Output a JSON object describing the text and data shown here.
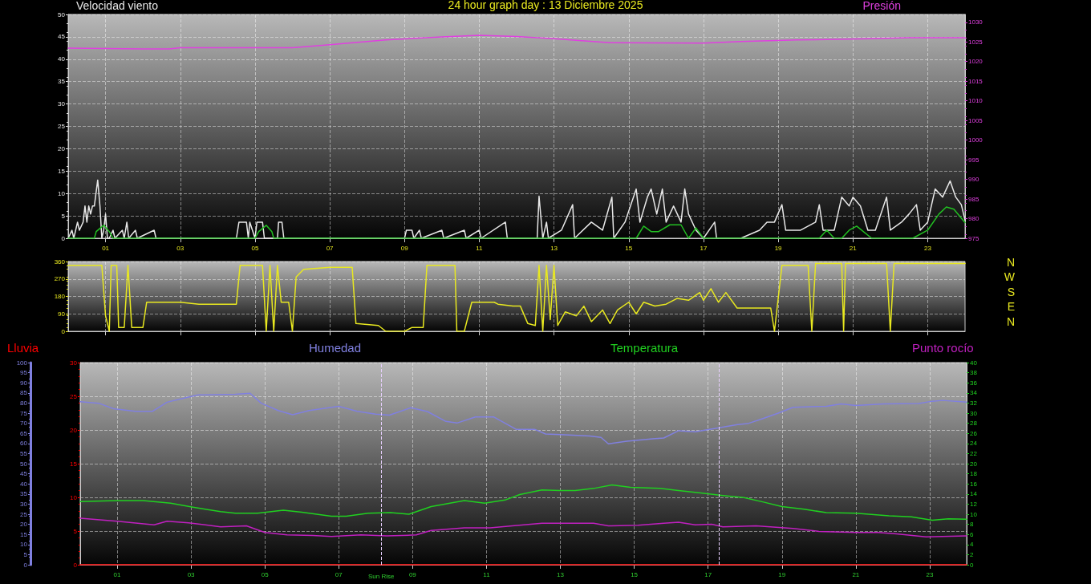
{
  "chart_data": [
    {
      "type": "line",
      "title": "24 hour graph day : 13 Diciembre 2025",
      "ylabel": "Velocidad viento",
      "y2label": "Presión",
      "xlim": [
        0,
        24
      ],
      "xticks": [
        {
          "value": 1,
          "label": "01"
        },
        {
          "value": 3,
          "label": "03"
        },
        {
          "value": 5,
          "label": "05"
        },
        {
          "value": 7,
          "label": "07"
        },
        {
          "value": 9,
          "label": "09"
        },
        {
          "value": 11,
          "label": "11"
        },
        {
          "value": 13,
          "label": "13"
        },
        {
          "value": 15,
          "label": "15"
        },
        {
          "value": 17,
          "label": "17"
        },
        {
          "value": 19,
          "label": "19"
        },
        {
          "value": 21,
          "label": "21"
        },
        {
          "value": 23,
          "label": "23"
        }
      ],
      "ylim": [
        0,
        50
      ],
      "yticks": [
        0,
        5,
        10,
        15,
        20,
        25,
        30,
        35,
        40,
        45,
        50
      ],
      "y2lim": [
        975,
        1032
      ],
      "y2ticks": [
        975,
        980,
        985,
        990,
        995,
        1000,
        1005,
        1010,
        1015,
        1020,
        1025,
        1030
      ],
      "grid": true,
      "legend": false,
      "marker": "none",
      "line_style": "solid",
      "series": [
        {
          "color": "#e8e8e8",
          "x": [
            0,
            0.1,
            0.15,
            0.25,
            0.3,
            0.4,
            0.45,
            0.5,
            0.55,
            0.6,
            0.65,
            0.7,
            0.79,
            0.85,
            0.9,
            0.95,
            1.0,
            1.05,
            1.1,
            1.2,
            1.25,
            1.45,
            1.5,
            1.57,
            1.62,
            1.8,
            1.85,
            2.3,
            2.35,
            4.5,
            4.57,
            4.77,
            4.82,
            4.86,
            5.0,
            5.05,
            5.2,
            5.25,
            5.6,
            5.63,
            5.72,
            5.77,
            9.0,
            9.05,
            9.2,
            9.25,
            9.4,
            9.45,
            10.0,
            10.05,
            10.6,
            10.65,
            11.0,
            11.05,
            11.7,
            11.75,
            12.55,
            12.6,
            12.7,
            12.8,
            12.85,
            13.2,
            13.5,
            13.55,
            14.0,
            14.3,
            14.55,
            14.6,
            14.9,
            15.2,
            15.3,
            15.5,
            15.6,
            15.75,
            15.9,
            16.0,
            16.2,
            16.4,
            16.5,
            16.6,
            16.8,
            17.0,
            17.3,
            17.35,
            18.0,
            18.5,
            18.7,
            18.9,
            19.1,
            19.2,
            19.6,
            20.0,
            20.1,
            20.2,
            20.5,
            20.7,
            20.9,
            21.0,
            21.2,
            21.4,
            21.6,
            21.9,
            22.0,
            22.3,
            22.5,
            22.7,
            22.8,
            23.0,
            23.2,
            23.4,
            23.6,
            23.75,
            23.9,
            24.0
          ],
          "values": [
            0,
            1.8,
            0,
            3.6,
            1.8,
            3.6,
            7.2,
            3.6,
            7.2,
            5.4,
            7.2,
            7.2,
            13,
            7.2,
            0,
            1.8,
            5.4,
            0,
            0,
            1.8,
            0,
            1.8,
            0,
            3.6,
            0,
            1.8,
            0,
            1.8,
            0,
            0,
            3.6,
            3.6,
            0,
            3.6,
            0,
            3.6,
            3.6,
            0,
            0,
            3.6,
            3.6,
            0,
            0,
            1.8,
            1.8,
            0,
            1.8,
            0,
            1.8,
            0,
            1.8,
            0,
            1.8,
            0,
            3.6,
            0,
            0,
            9.4,
            0,
            3.6,
            0,
            1.8,
            7.5,
            0,
            3.6,
            1.8,
            9.2,
            0,
            3.6,
            11,
            3.6,
            9.2,
            11,
            5.4,
            11,
            3.6,
            7.2,
            3.6,
            11,
            5.4,
            1.8,
            0,
            3.6,
            0,
            0,
            1.8,
            3.6,
            3.6,
            7.5,
            1.8,
            1.8,
            3.6,
            7.5,
            1.8,
            1.8,
            9.2,
            7.2,
            9.2,
            7.2,
            1.8,
            1.8,
            9.2,
            1.8,
            3.6,
            5.4,
            7.5,
            1.8,
            3.6,
            11,
            9.2,
            12.8,
            9.2,
            7.5,
            4
          ]
        },
        {
          "color": "#22c022",
          "x": [
            0,
            0.7,
            0.75,
            0.95,
            1.1,
            1.2,
            5.0,
            5.1,
            5.3,
            5.45,
            5.5,
            15.2,
            15.4,
            15.6,
            15.8,
            16.1,
            16.4,
            16.6,
            16.8,
            17.0,
            20.1,
            20.3,
            20.5,
            20.7,
            20.9,
            21.1,
            21.5,
            22.6,
            23.0,
            23.3,
            23.5,
            23.7,
            24.0
          ],
          "values": [
            0,
            0,
            1.5,
            2.9,
            1.5,
            0,
            0,
            1.5,
            2.9,
            1.5,
            0,
            0,
            2.7,
            1.5,
            1.5,
            3,
            3,
            0,
            2.3,
            0,
            0,
            1.8,
            0,
            0,
            1.8,
            2.7,
            0,
            0,
            1.8,
            5.4,
            7,
            6.5,
            3.5
          ]
        },
        {
          "color": "#e040e0",
          "axis": "y2",
          "x": [
            0,
            2,
            2.7,
            3,
            6,
            7,
            8.5,
            10,
            11,
            12,
            13,
            14.5,
            17,
            18,
            19.5,
            21.5,
            22.5,
            24
          ],
          "values": [
            1023.4,
            1023.2,
            1023.2,
            1023.5,
            1023.5,
            1024.3,
            1025.5,
            1026.3,
            1026.7,
            1026.4,
            1025.8,
            1024.8,
            1024.7,
            1025.1,
            1025.5,
            1025.8,
            1026.1,
            1026.1
          ]
        }
      ]
    },
    {
      "type": "line",
      "xlim": [
        0,
        24
      ],
      "xticks": [
        1,
        3,
        5,
        7,
        9,
        11,
        13,
        15,
        17,
        19,
        21,
        23
      ],
      "ylim": [
        0,
        360
      ],
      "yticks": [
        0,
        90,
        180,
        270,
        360
      ],
      "grid": true,
      "legend": false,
      "marker": "none",
      "line_style": "solid",
      "tick_labels": "y",
      "annotations": [
        "N",
        "W",
        "S",
        "E",
        "N"
      ],
      "series": [
        {
          "color": "#e8e820",
          "x": [
            0,
            0.9,
            1.0,
            1.1,
            1.15,
            1.3,
            1.35,
            1.5,
            1.6,
            1.7,
            2.0,
            2.1,
            3.0,
            3.5,
            4.0,
            4.5,
            4.6,
            5.2,
            5.3,
            5.4,
            5.5,
            5.6,
            5.7,
            5.9,
            6.0,
            6.1,
            6.3,
            7.0,
            7.6,
            7.7,
            8.3,
            8.5,
            9.0,
            9.2,
            9.5,
            9.6,
            10.35,
            10.4,
            10.6,
            10.8,
            11.4,
            11.5,
            11.9,
            12.1,
            12.3,
            12.5,
            12.6,
            12.7,
            12.8,
            12.9,
            13.0,
            13.1,
            13.3,
            13.6,
            13.8,
            14.0,
            14.3,
            14.5,
            14.7,
            15.0,
            15.2,
            15.4,
            15.7,
            16.0,
            16.3,
            16.6,
            16.9,
            17.0,
            17.2,
            17.4,
            17.6,
            17.9,
            18.2,
            18.5,
            18.8,
            18.9,
            19.1,
            19.8,
            19.9,
            20.0,
            20.7,
            20.75,
            20.8,
            21.9,
            22.0,
            22.1,
            24
          ],
          "values": [
            340,
            340,
            80,
            0,
            340,
            340,
            20,
            20,
            340,
            20,
            20,
            150,
            150,
            140,
            140,
            140,
            340,
            340,
            0,
            340,
            0,
            340,
            150,
            150,
            0,
            280,
            320,
            330,
            330,
            40,
            30,
            0,
            0,
            20,
            20,
            340,
            340,
            0,
            0,
            150,
            150,
            140,
            130,
            130,
            40,
            30,
            340,
            0,
            340,
            60,
            340,
            30,
            100,
            80,
            130,
            50,
            110,
            40,
            110,
            150,
            90,
            150,
            130,
            140,
            170,
            160,
            200,
            160,
            220,
            150,
            200,
            120,
            120,
            120,
            120,
            0,
            340,
            340,
            0,
            350,
            350,
            0,
            350,
            350,
            0,
            350,
            350
          ]
        }
      ]
    },
    {
      "type": "line",
      "xlim": [
        0,
        24
      ],
      "xticks": [
        {
          "value": 1,
          "label": "01"
        },
        {
          "value": 3,
          "label": "03"
        },
        {
          "value": 5,
          "label": "05"
        },
        {
          "value": 7,
          "label": "07"
        },
        {
          "value": 9,
          "label": "09"
        },
        {
          "value": 11,
          "label": "11"
        },
        {
          "value": 13,
          "label": "13"
        },
        {
          "value": 15,
          "label": "15"
        },
        {
          "value": 17,
          "label": "17"
        },
        {
          "value": 19,
          "label": "19"
        },
        {
          "value": 21,
          "label": "21"
        },
        {
          "value": 23,
          "label": "23"
        }
      ],
      "ylim": [
        0,
        30
      ],
      "yticks": [
        0,
        5,
        10,
        15,
        20,
        25,
        30
      ],
      "y2lim": [
        0,
        40
      ],
      "y2ticks": [
        0,
        2,
        4,
        6,
        8,
        10,
        12,
        14,
        16,
        18,
        20,
        22,
        24,
        26,
        28,
        30,
        32,
        34,
        36,
        38,
        40
      ],
      "y3lim": [
        0,
        100
      ],
      "y3ticks": [
        0,
        5,
        10,
        15,
        20,
        25,
        30,
        35,
        40,
        45,
        50,
        55,
        60,
        65,
        70,
        75,
        80,
        85,
        90,
        95,
        100
      ],
      "grid": true,
      "legend": "top",
      "marker": "none",
      "line_style": "solid",
      "ref_lines": [
        {
          "axis": "x",
          "value": 8.15,
          "label": "Sun Rise"
        },
        {
          "axis": "x",
          "value": 17.3,
          "label": null
        }
      ],
      "series": [
        {
          "name": "Lluvia",
          "color": "#ff0000",
          "x": [
            0,
            24
          ],
          "values": [
            0,
            0
          ]
        },
        {
          "name": "Humedad",
          "color": "#8080e0",
          "axis": "y3",
          "x": [
            0,
            0.5,
            0.9,
            1.5,
            1.96,
            2.35,
            2.93,
            3.2,
            4.2,
            4.6,
            4.9,
            5.36,
            5.75,
            6.2,
            7,
            7.5,
            8,
            8.37,
            8.95,
            9.4,
            9.9,
            10.2,
            10.7,
            11.2,
            11.8,
            12.3,
            12.6,
            13,
            13.8,
            14.1,
            14.3,
            14.8,
            15.5,
            15.8,
            16.2,
            16.65,
            17.2,
            17.8,
            18.07,
            18.5,
            18.9,
            19.3,
            20.2,
            20.6,
            21,
            21.75,
            22.7,
            23.07,
            23.35,
            24
          ],
          "values": [
            80.7,
            79.9,
            77.2,
            75.9,
            75.9,
            80.4,
            82.9,
            84,
            84.3,
            84.8,
            79.9,
            76.3,
            74.2,
            76.3,
            78.4,
            75.9,
            74.5,
            74,
            77.7,
            75.8,
            70.9,
            70.1,
            73.1,
            73.1,
            67,
            67,
            64.7,
            64.4,
            63.7,
            63,
            59.8,
            61.1,
            62.3,
            62.7,
            66.3,
            65.8,
            67.5,
            69.3,
            69.8,
            72.4,
            75,
            77.9,
            78.4,
            79.6,
            78.8,
            79.6,
            79.8,
            80.9,
            81.3,
            80.5
          ]
        },
        {
          "name": "Temperatura",
          "color": "#20d020",
          "axis": "y2",
          "x": [
            0,
            1,
            1.7,
            2.45,
            3.05,
            3.8,
            4.2,
            4.8,
            5.5,
            6,
            6.8,
            7.2,
            7.8,
            8.4,
            8.9,
            9.5,
            10.4,
            10.95,
            11.5,
            11.9,
            12.5,
            13,
            13.4,
            13.9,
            14.4,
            14.9,
            15.7,
            16.2,
            16.8,
            17.4,
            17.97,
            18.5,
            19,
            19.6,
            20.2,
            21,
            21.9,
            22.5,
            23.07,
            23.5,
            24
          ],
          "values": [
            12.5,
            12.7,
            12.7,
            12.2,
            11.4,
            10.5,
            10.2,
            10.2,
            10.8,
            10.4,
            9.6,
            9.6,
            10.2,
            10.3,
            10,
            11.5,
            12.7,
            12.2,
            12.8,
            13.9,
            14.8,
            14.7,
            14.7,
            15.1,
            15.8,
            15.3,
            15.1,
            14.7,
            14.2,
            13.7,
            13.3,
            12.4,
            11.5,
            11,
            10.3,
            10.2,
            9.7,
            9.5,
            8.8,
            9.1,
            9
          ]
        },
        {
          "name": "Punto rocío",
          "color": "#c020c0",
          "axis": "y2",
          "x": [
            0,
            1,
            2,
            2.35,
            2.93,
            3.8,
            4.5,
            5,
            5.6,
            6.3,
            6.8,
            7.6,
            8.3,
            9.1,
            9.5,
            10.4,
            11.1,
            11.7,
            12.5,
            13,
            13.9,
            14.3,
            15.1,
            15.8,
            16.2,
            16.65,
            17.1,
            17.4,
            18.3,
            19.3,
            20,
            21,
            21.6,
            22.1,
            22.9,
            24
          ],
          "values": [
            9.2,
            8.6,
            7.9,
            8.6,
            8.3,
            7.5,
            7.7,
            6.4,
            5.9,
            5.8,
            5.6,
            5.9,
            5.7,
            5.9,
            6.8,
            7.3,
            7.3,
            7.7,
            8.2,
            8.2,
            8.2,
            7.7,
            7.8,
            8.2,
            8.4,
            7.9,
            8,
            7.5,
            7.7,
            7.2,
            6.6,
            6.4,
            6.4,
            6.1,
            5.5,
            5.7
          ]
        }
      ]
    }
  ]
}
